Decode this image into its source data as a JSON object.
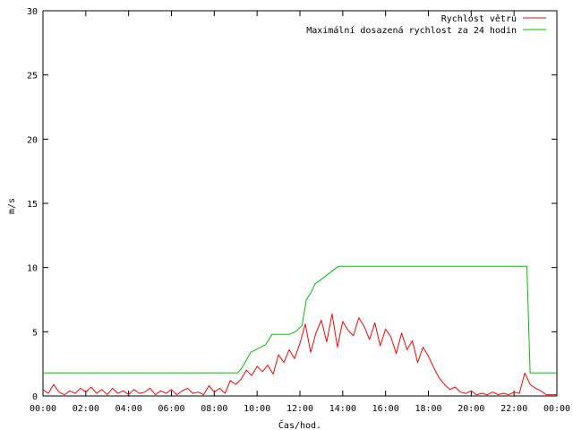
{
  "chart_data": {
    "type": "line",
    "xlabel": "Čas/hod.",
    "ylabel": "m/s",
    "xlim": [
      0,
      24
    ],
    "ylim": [
      0,
      30
    ],
    "grid": false,
    "legend_position": "top-right",
    "x_ticks": [
      "00:00",
      "02:00",
      "04:00",
      "06:00",
      "08:00",
      "10:00",
      "12:00",
      "14:00",
      "16:00",
      "18:00",
      "20:00",
      "22:00",
      "00:00"
    ],
    "y_ticks": [
      0,
      5,
      10,
      15,
      20,
      25,
      30
    ],
    "series": [
      {
        "name": "Rychlost větru",
        "color": "#ff0000",
        "x": [
          0,
          0.25,
          0.5,
          0.75,
          1,
          1.25,
          1.5,
          1.75,
          2,
          2.25,
          2.5,
          2.75,
          3,
          3.25,
          3.5,
          3.75,
          4,
          4.25,
          4.5,
          4.75,
          5,
          5.25,
          5.5,
          5.75,
          6,
          6.25,
          6.5,
          6.75,
          7,
          7.25,
          7.5,
          7.75,
          8,
          8.25,
          8.5,
          8.75,
          9,
          9.25,
          9.5,
          9.75,
          10,
          10.25,
          10.5,
          10.75,
          11,
          11.25,
          11.5,
          11.75,
          12,
          12.25,
          12.5,
          12.75,
          13,
          13.25,
          13.5,
          13.75,
          14,
          14.25,
          14.5,
          14.75,
          15,
          15.25,
          15.5,
          15.75,
          16,
          16.25,
          16.5,
          16.75,
          17,
          17.25,
          17.5,
          17.75,
          18,
          18.25,
          18.5,
          18.75,
          19,
          19.25,
          19.5,
          19.75,
          20,
          20.25,
          20.5,
          20.75,
          21,
          21.25,
          21.5,
          21.75,
          22,
          22.25,
          22.5,
          22.75,
          23,
          23.25,
          23.5,
          23.75,
          24
        ],
        "values": [
          0.5,
          0.2,
          0.9,
          0.3,
          0.1,
          0.4,
          0.2,
          0.6,
          0.3,
          0.7,
          0.2,
          0.5,
          0.1,
          0.6,
          0.2,
          0.4,
          0.1,
          0.5,
          0.2,
          0.3,
          0.6,
          0.1,
          0.4,
          0.2,
          0.5,
          0.1,
          0.4,
          0.6,
          0.2,
          0.3,
          0.1,
          0.8,
          0.3,
          0.6,
          0.2,
          1.2,
          0.9,
          1.3,
          2.0,
          1.6,
          2.3,
          1.9,
          2.4,
          1.7,
          3.2,
          2.6,
          3.6,
          2.9,
          4.1,
          5.6,
          3.4,
          4.9,
          5.9,
          4.2,
          6.4,
          3.8,
          5.8,
          5.1,
          4.7,
          6.1,
          5.4,
          4.4,
          5.7,
          3.9,
          5.2,
          4.6,
          3.3,
          4.9,
          3.6,
          4.3,
          2.6,
          3.8,
          3.1,
          2.2,
          1.4,
          0.9,
          0.5,
          0.7,
          0.3,
          0.2,
          0.4,
          0.1,
          0.2,
          0.1,
          0.3,
          0.1,
          0.2,
          0.1,
          0.3,
          0.2,
          1.8,
          0.9,
          0.6,
          0.4,
          0.1,
          0.1,
          0.1
        ]
      },
      {
        "name": "Maximální dosazená rychlost za 24 hodin",
        "color": "#00c000",
        "x": [
          0,
          9.1,
          9.3,
          9.5,
          9.7,
          10.4,
          10.7,
          11.5,
          11.8,
          12.1,
          12.2,
          12.3,
          12.5,
          12.7,
          13.8,
          22.6,
          22.75,
          23.0,
          24
        ],
        "values": [
          1.8,
          1.8,
          2.2,
          2.8,
          3.4,
          4.0,
          4.8,
          4.8,
          5.0,
          5.5,
          6.5,
          7.5,
          8.0,
          8.7,
          10.1,
          10.1,
          1.8,
          1.8,
          1.8
        ]
      }
    ]
  }
}
